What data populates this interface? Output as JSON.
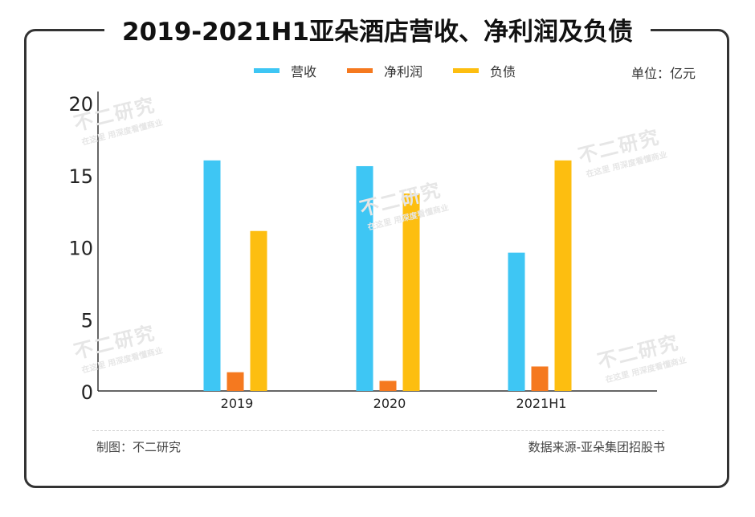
{
  "title": "2019-2021H1亚朵酒店营收、净利润及负债",
  "unit": "单位：亿元",
  "credit": "制图：不二研究",
  "source": "数据来源-亚朵集团招股书",
  "watermark": {
    "main": "不二研究",
    "sub": "在这里 用深度看懂商业"
  },
  "colors": {
    "revenue": "#3EC6F4",
    "net_profit": "#F5791F",
    "debt": "#FDBE10",
    "axis": "#333333"
  },
  "chart_data": {
    "type": "bar",
    "categories": [
      "2019",
      "2020",
      "2021H1"
    ],
    "series": [
      {
        "name": "营收",
        "values": [
          16.0,
          15.6,
          9.6
        ]
      },
      {
        "name": "净利润",
        "values": [
          1.3,
          0.7,
          1.7
        ]
      },
      {
        "name": "负债",
        "values": [
          11.1,
          13.7,
          16.0
        ]
      }
    ],
    "ylim": [
      0,
      20
    ],
    "yticks": [
      0,
      5,
      10,
      15,
      20
    ],
    "legend_position": "top-center",
    "grid": false
  }
}
